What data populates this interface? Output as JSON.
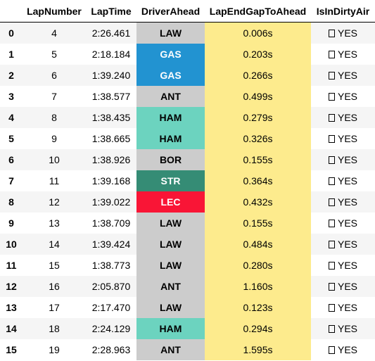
{
  "table": {
    "columns": [
      "",
      "LapNumber",
      "LapTime",
      "DriverAhead",
      "LapEndGapToAhead",
      "IsInDirtyAir"
    ],
    "rows": [
      {
        "index": "0",
        "lap": "4",
        "time": "2:26.461",
        "driver": "LAW",
        "driver_bg": "#cccccc",
        "driver_fg": "#000000",
        "gap": "0.006s",
        "dirty": "YES"
      },
      {
        "index": "1",
        "lap": "5",
        "time": "2:18.184",
        "driver": "GAS",
        "driver_bg": "#2293d1",
        "driver_fg": "#ffffff",
        "gap": "0.203s",
        "dirty": "YES"
      },
      {
        "index": "2",
        "lap": "6",
        "time": "1:39.240",
        "driver": "GAS",
        "driver_bg": "#2293d1",
        "driver_fg": "#ffffff",
        "gap": "0.266s",
        "dirty": "YES"
      },
      {
        "index": "3",
        "lap": "7",
        "time": "1:38.577",
        "driver": "ANT",
        "driver_bg": "#cccccc",
        "driver_fg": "#000000",
        "gap": "0.499s",
        "dirty": "YES"
      },
      {
        "index": "4",
        "lap": "8",
        "time": "1:38.435",
        "driver": "HAM",
        "driver_bg": "#6cd3bf",
        "driver_fg": "#000000",
        "gap": "0.279s",
        "dirty": "YES"
      },
      {
        "index": "5",
        "lap": "9",
        "time": "1:38.665",
        "driver": "HAM",
        "driver_bg": "#6cd3bf",
        "driver_fg": "#000000",
        "gap": "0.326s",
        "dirty": "YES"
      },
      {
        "index": "6",
        "lap": "10",
        "time": "1:38.926",
        "driver": "BOR",
        "driver_bg": "#cccccc",
        "driver_fg": "#000000",
        "gap": "0.155s",
        "dirty": "YES"
      },
      {
        "index": "7",
        "lap": "11",
        "time": "1:39.168",
        "driver": "STR",
        "driver_bg": "#358c75",
        "driver_fg": "#ffffff",
        "gap": "0.364s",
        "dirty": "YES"
      },
      {
        "index": "8",
        "lap": "12",
        "time": "1:39.022",
        "driver": "LEC",
        "driver_bg": "#f91536",
        "driver_fg": "#ffffff",
        "gap": "0.432s",
        "dirty": "YES"
      },
      {
        "index": "9",
        "lap": "13",
        "time": "1:38.709",
        "driver": "LAW",
        "driver_bg": "#cccccc",
        "driver_fg": "#000000",
        "gap": "0.155s",
        "dirty": "YES"
      },
      {
        "index": "10",
        "lap": "14",
        "time": "1:39.424",
        "driver": "LAW",
        "driver_bg": "#cccccc",
        "driver_fg": "#000000",
        "gap": "0.484s",
        "dirty": "YES"
      },
      {
        "index": "11",
        "lap": "15",
        "time": "1:38.773",
        "driver": "LAW",
        "driver_bg": "#cccccc",
        "driver_fg": "#000000",
        "gap": "0.280s",
        "dirty": "YES"
      },
      {
        "index": "12",
        "lap": "16",
        "time": "2:05.870",
        "driver": "ANT",
        "driver_bg": "#cccccc",
        "driver_fg": "#000000",
        "gap": "1.160s",
        "dirty": "YES"
      },
      {
        "index": "13",
        "lap": "17",
        "time": "2:17.470",
        "driver": "LAW",
        "driver_bg": "#cccccc",
        "driver_fg": "#000000",
        "gap": "0.123s",
        "dirty": "YES"
      },
      {
        "index": "14",
        "lap": "18",
        "time": "2:24.129",
        "driver": "HAM",
        "driver_bg": "#6cd3bf",
        "driver_fg": "#000000",
        "gap": "0.294s",
        "dirty": "YES"
      },
      {
        "index": "15",
        "lap": "19",
        "time": "2:28.963",
        "driver": "ANT",
        "driver_bg": "#cccccc",
        "driver_fg": "#000000",
        "gap": "1.595s",
        "dirty": "YES"
      }
    ],
    "gap_highlight_color": "#fdeb8d",
    "dirty_icon": "checkbox-icon"
  }
}
